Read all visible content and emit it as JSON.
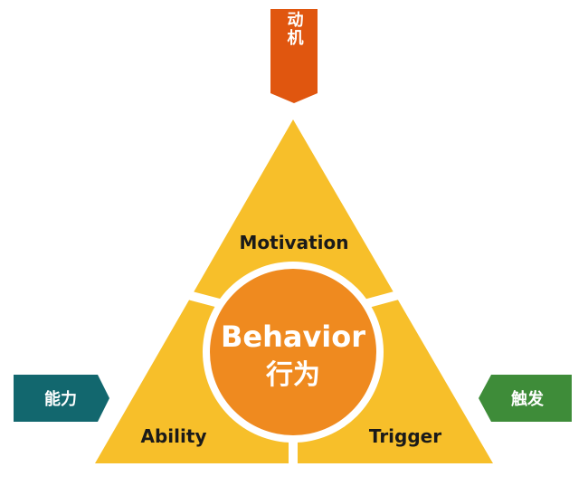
{
  "diagram": {
    "top_tag": {
      "label": "动机",
      "color": "#e0560f"
    },
    "left_tag": {
      "label": "能力",
      "color": "#12676e"
    },
    "right_tag": {
      "label": "触发",
      "color": "#3e8c39"
    },
    "triangle_color": "#f7bf2a",
    "center_color": "#ef8a1f",
    "segments": {
      "top": "Motivation",
      "left": "Ability",
      "right": "Trigger"
    },
    "center": {
      "title_en": "Behavior",
      "title_zh": "行为"
    }
  }
}
